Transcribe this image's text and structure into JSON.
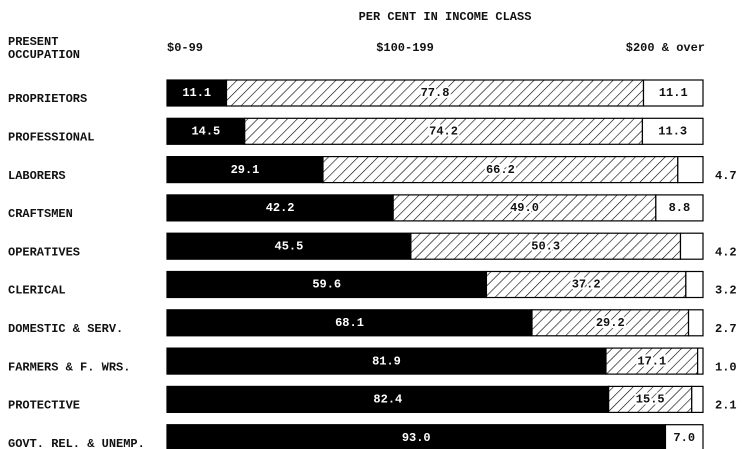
{
  "chart_data": {
    "type": "stacked_bar_horizontal",
    "title": "PER CENT IN INCOME CLASS",
    "category_axis_label": "PRESENT OCCUPATION",
    "categories": [
      "PROPRIETORS",
      "PROFESSIONAL",
      "LABORERS",
      "CRAFTSMEN",
      "OPERATIVES",
      "CLERICAL",
      "DOMESTIC & SERV.",
      "FARMERS & F. WRS.",
      "PROTECTIVE",
      "GOVT. REL. & UNEMP."
    ],
    "xlim": [
      0,
      100
    ],
    "series": [
      {
        "name": "$0-99",
        "color": "#000000",
        "hatch": false,
        "values": [
          11.1,
          14.5,
          29.1,
          42.2,
          45.5,
          59.6,
          68.1,
          81.9,
          82.4,
          93.0
        ],
        "value_labels": [
          "11.1",
          "14.5",
          "29.1",
          "42.2",
          "45.5",
          "59.6",
          "68.1",
          "81.9",
          "82.4",
          "93.0"
        ]
      },
      {
        "name": "$100-199",
        "color": "#000000",
        "hatch": true,
        "values": [
          77.8,
          74.2,
          66.2,
          49.0,
          50.3,
          37.2,
          29.2,
          17.1,
          15.5,
          0
        ],
        "value_labels": [
          "77.8",
          "74.2",
          "66.2",
          "49.0",
          "50.3",
          "37.2",
          "29.2",
          "17.1",
          "15.5",
          null
        ]
      },
      {
        "name": "$200 & over",
        "color": "#ffffff",
        "hatch": false,
        "values": [
          11.1,
          11.3,
          4.7,
          8.8,
          4.2,
          3.2,
          2.7,
          1.0,
          2.1,
          7.0
        ],
        "value_labels": [
          "11.1",
          "11.3",
          "4.7",
          "8.8",
          "4.2",
          "3.2",
          "2.7",
          "1.0",
          "2.1",
          "7.0"
        ]
      }
    ]
  }
}
